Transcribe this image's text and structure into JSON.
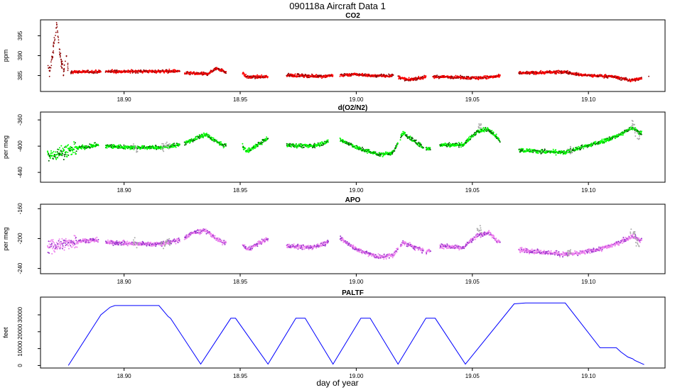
{
  "figure": {
    "title": "090118a   Aircraft Data 1",
    "xlabel": "day of year"
  },
  "colors": {
    "co2_dark": "#8b0000",
    "co2": "#ff0000",
    "o2n2_dark": "#006400",
    "o2n2": "#00ff00",
    "apo_dark": "#9932cc",
    "apo": "#ee82ee",
    "flagged": "#aaaaaa",
    "paltf_line": "#0000ff"
  },
  "chart_data": [
    {
      "type": "scatter",
      "title": "CO2",
      "ylabel": "ppm",
      "xlim": [
        18.864,
        19.133
      ],
      "ylim": [
        381,
        399
      ],
      "yticks": [
        385,
        390,
        395
      ],
      "xticks": [
        18.9,
        18.95,
        19.0,
        19.05,
        19.1
      ],
      "xticklabels": [
        "18.90",
        "18.95",
        "19.00",
        "19.05",
        "19.10"
      ],
      "series": [
        {
          "x": [
            18.867,
            18.868,
            18.869,
            18.87,
            18.871,
            18.872,
            18.873,
            18.874,
            18.875,
            18.876
          ],
          "y": [
            387,
            386,
            389,
            394,
            398,
            392,
            388,
            386,
            391,
            386
          ]
        },
        {
          "x": [
            18.877,
            18.89,
            18.892,
            18.924,
            18.926,
            18.936,
            18.94,
            18.944,
            18.951,
            18.953,
            18.962,
            18.97,
            18.985,
            18.99,
            19.0,
            19.008,
            19.016,
            19.022,
            19.03,
            19.037,
            19.052,
            19.062,
            19.07,
            19.09,
            19.096,
            19.104,
            19.11,
            19.118,
            19.123
          ],
          "y": [
            385.9,
            386.0,
            386.0,
            386.1,
            385.6,
            385.4,
            386.9,
            385.8,
            385.7,
            384.6,
            384.7,
            385.1,
            384.8,
            385.0,
            385.3,
            384.9,
            385.0,
            383.9,
            384.6,
            384.7,
            384.4,
            384.8,
            385.6,
            385.9,
            385.2,
            384.9,
            384.8,
            383.8,
            384.3
          ]
        }
      ]
    },
    {
      "type": "scatter",
      "title": "d(O2/N2)",
      "ylabel": "per meg",
      "xlim": [
        18.864,
        19.133
      ],
      "ylim": [
        -455,
        -348
      ],
      "yticks": [
        -360,
        -400,
        -440
      ],
      "xticks": [
        18.9,
        18.95,
        19.0,
        19.05,
        19.1
      ],
      "xticklabels": [
        "18.90",
        "18.95",
        "19.00",
        "19.05",
        "19.10"
      ],
      "series": [
        {
          "x": [
            18.867,
            18.88,
            18.889,
            18.892,
            18.905,
            18.916,
            18.924,
            18.93,
            18.935,
            18.942,
            18.951,
            18.953,
            18.962,
            18.97,
            18.981,
            18.988,
            18.993,
            19.002,
            19.01,
            19.016,
            19.02,
            19.03,
            19.036,
            19.046,
            19.052,
            19.057,
            19.062,
            19.07,
            19.09,
            19.094,
            19.104,
            19.112,
            19.119,
            19.122
          ],
          "y": [
            -415,
            -403,
            -398,
            -400,
            -402,
            -402,
            -398,
            -390,
            -382,
            -398,
            -400,
            -408,
            -388,
            -398,
            -400,
            -393,
            -390,
            -405,
            -413,
            -410,
            -380,
            -405,
            -398,
            -398,
            -378,
            -374,
            -392,
            -406,
            -410,
            -405,
            -395,
            -385,
            -372,
            -380
          ]
        }
      ]
    },
    {
      "type": "scatter",
      "title": "APO",
      "ylabel": "per meg",
      "xlim": [
        18.864,
        19.133
      ],
      "ylim": [
        -247,
        -154
      ],
      "yticks": [
        -160,
        -200,
        -240
      ],
      "xticks": [
        18.9,
        18.95,
        19.0,
        19.05,
        19.1
      ],
      "xticklabels": [
        "18.90",
        "18.95",
        "19.00",
        "19.05",
        "19.10"
      ],
      "series": [
        {
          "x": [
            18.867,
            18.88,
            18.889,
            18.892,
            18.905,
            18.916,
            18.924,
            18.93,
            18.935,
            18.942,
            18.951,
            18.953,
            18.962,
            18.97,
            18.981,
            18.988,
            18.993,
            19.002,
            19.01,
            19.016,
            19.02,
            19.03,
            19.036,
            19.046,
            19.052,
            19.057,
            19.062,
            19.07,
            19.09,
            19.094,
            19.104,
            19.112,
            19.119,
            19.122
          ],
          "y": [
            -212,
            -203,
            -202,
            -205,
            -207,
            -207,
            -202,
            -192,
            -189,
            -205,
            -208,
            -215,
            -200,
            -210,
            -212,
            -205,
            -200,
            -217,
            -225,
            -222,
            -205,
            -218,
            -210,
            -212,
            -196,
            -192,
            -206,
            -215,
            -221,
            -220,
            -215,
            -207,
            -196,
            -202
          ]
        }
      ]
    },
    {
      "type": "line",
      "title": "PALTF",
      "ylabel": "feet",
      "xlim": [
        18.864,
        19.133
      ],
      "ylim": [
        -1500,
        40500
      ],
      "yticks": [
        0,
        10000,
        20000,
        30000
      ],
      "xticks": [
        18.9,
        18.95,
        19.0,
        19.05,
        19.1
      ],
      "xticklabels": [
        "18.90",
        "18.95",
        "19.00",
        "19.05",
        "19.10"
      ],
      "series": [
        {
          "x": [
            18.876,
            18.89,
            18.894,
            18.896,
            18.906,
            18.911,
            18.915,
            18.919,
            18.92,
            18.933,
            18.946,
            18.948,
            18.962,
            18.974,
            18.978,
            18.99,
            19.002,
            19.006,
            19.018,
            19.03,
            19.034,
            19.047,
            19.068,
            19.073,
            19.077,
            19.085,
            19.09,
            19.105,
            19.112,
            19.114,
            19.117,
            19.119,
            19.12,
            19.124
          ],
          "y": [
            0,
            30000,
            34500,
            35500,
            35500,
            35500,
            35500,
            29000,
            28000,
            800,
            28000,
            28000,
            800,
            28000,
            28000,
            800,
            28000,
            28000,
            800,
            28000,
            28000,
            800,
            36500,
            37000,
            37000,
            37000,
            37000,
            10500,
            10500,
            8000,
            5000,
            4000,
            3000,
            500
          ]
        }
      ]
    }
  ]
}
